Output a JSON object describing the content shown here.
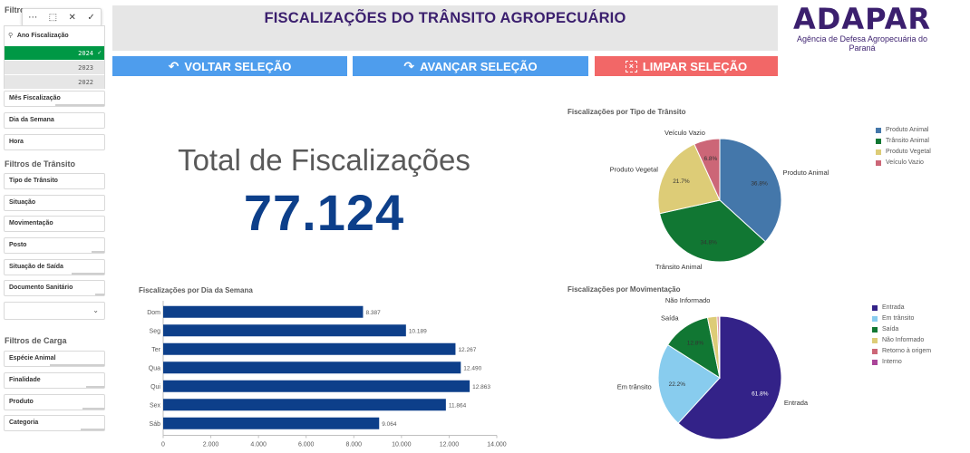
{
  "header": {
    "title": "FISCALIZAÇÕES DO TRÂNSITO AGROPECUÁRIO",
    "logo_word": "ADAPAR",
    "logo_subtitle": "Agência de Defesa Agropecuária do Paraná"
  },
  "nav": {
    "voltar": "VOLTAR SELEÇÃO",
    "avancar": "AVANÇAR SELEÇÃO",
    "limpar": "LIMPAR SELEÇÃO"
  },
  "sidebar": {
    "section_filtros": "Filtro",
    "toolbar": {
      "more": "⋯",
      "select": "⬚",
      "cancel": "✕",
      "confirm": "✓"
    },
    "ano": {
      "label": "Ano Fiscalização",
      "rows": [
        {
          "value": "2024",
          "selected": true,
          "check": "✓"
        },
        {
          "value": "2023",
          "selected": false
        },
        {
          "value": "2022",
          "selected": false
        }
      ]
    },
    "general_filters": [
      "Mês Fiscalização",
      "Dia da Semana",
      "Hora"
    ],
    "section_transito": "Filtros de Trânsito",
    "transito_filters": [
      "Tipo de Trânsito",
      "Situação",
      "Movimentação",
      "Posto",
      "Situação de Saída",
      "Documento Sanitário"
    ],
    "dropdown_chevron": "⌄",
    "section_carga": "Filtros de Carga",
    "carga_filters": [
      "Espécie Animal",
      "Finalidade",
      "Produto",
      "Categoria"
    ]
  },
  "kpi": {
    "label": "Total de Fiscalizações",
    "value": "77.124"
  },
  "chart_data": [
    {
      "type": "bar",
      "orientation": "horizontal",
      "title": "Fiscalizações por Dia da Semana",
      "categories": [
        "Dom",
        "Seg",
        "Ter",
        "Qua",
        "Qui",
        "Sex",
        "Sáb"
      ],
      "values": [
        8387,
        10189,
        12267,
        12490,
        12863,
        11864,
        9064
      ],
      "value_labels": [
        "8.387",
        "10.189",
        "12.267",
        "12.490",
        "12.863",
        "11.864",
        "9.064"
      ],
      "xlim": [
        0,
        14000
      ],
      "xticks": [
        0,
        2000,
        4000,
        6000,
        8000,
        10000,
        12000,
        14000
      ],
      "xtick_labels": [
        "0",
        "2.000",
        "4.000",
        "6.000",
        "8.000",
        "10.000",
        "12.000",
        "14.000"
      ],
      "color": "#0d3f8a"
    },
    {
      "type": "pie",
      "title": "Fiscalizações por Tipo de Trânsito",
      "labels": [
        "Produto Animal",
        "Trânsito Animal",
        "Produto Vegetal",
        "Veículo Vazio"
      ],
      "values": [
        36.8,
        34.8,
        21.7,
        6.8
      ],
      "pct_labels": [
        "36.8%",
        "34.8%",
        "21.7%",
        "6.8%"
      ],
      "colors": [
        "#4477aa",
        "#117733",
        "#ddcc77",
        "#cc6677"
      ],
      "legend_position": "right"
    },
    {
      "type": "pie",
      "title": "Fiscalizações por Movimentação",
      "labels": [
        "Entrada",
        "Em trânsito",
        "Saída",
        "Não Informado",
        "Retorno à origem",
        "Interno"
      ],
      "values": [
        61.8,
        22.2,
        12.8,
        2.5,
        0.5,
        0.2
      ],
      "pct_labels": [
        "61.8%",
        "22.2%",
        "12.8%",
        "",
        "",
        ""
      ],
      "outer_labels": [
        "Entrada",
        "Em trânsito",
        "Saída",
        "Não Informado",
        "",
        ""
      ],
      "colors": [
        "#332288",
        "#88ccee",
        "#117733",
        "#ddcc77",
        "#cc6677",
        "#aa4499"
      ],
      "legend_position": "right"
    }
  ]
}
